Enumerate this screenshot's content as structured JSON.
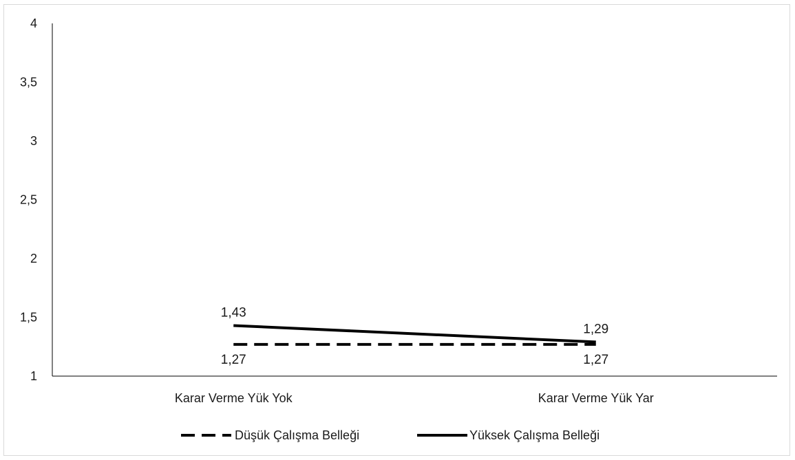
{
  "chart_data": {
    "type": "line",
    "title": "",
    "xlabel": "",
    "ylabel": "",
    "categories": [
      "Karar Verme Yük Yok",
      "Karar Verme Yük Yar"
    ],
    "ylim": [
      1,
      4
    ],
    "yticks": [
      1,
      1.5,
      2,
      2.5,
      3,
      3.5,
      4
    ],
    "ytick_labels": [
      "1",
      "1,5",
      "2",
      "2,5",
      "3",
      "3,5",
      "4"
    ],
    "grid": false,
    "legend_position": "bottom",
    "series": [
      {
        "name": "Düşük Çalışma Belleği",
        "values": [
          1.27,
          1.27
        ],
        "labels": [
          "1,27",
          "1,27"
        ],
        "style": "dashed",
        "color": "#000000"
      },
      {
        "name": "Yüksek Çalışma Belleği",
        "values": [
          1.43,
          1.29
        ],
        "labels": [
          "1,43",
          "1,29"
        ],
        "style": "solid",
        "color": "#000000"
      }
    ]
  }
}
